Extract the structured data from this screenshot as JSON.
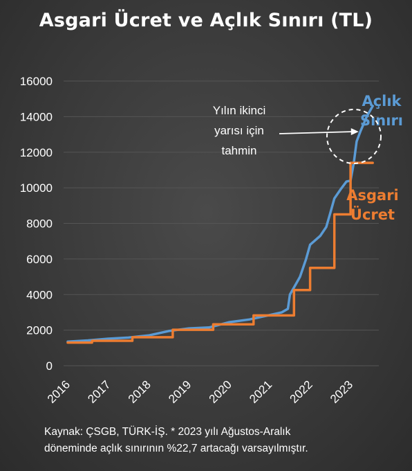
{
  "title": "Asgari Ücret ve Açlık Sınırı (TL)",
  "source_note": {
    "line1": "Kaynak: ÇSGB, TÜRK-İŞ. * 2023 yılı Ağustos-Aralık",
    "line2": "döneminde açlık sınırının %22,7 artacağı varsayılmıştır."
  },
  "colors": {
    "aclik": "#5b9bd5",
    "asgari": "#ed7d31",
    "background": "#3d3d3d",
    "grid": "#555555",
    "text": "#ffffff"
  },
  "chart_data": {
    "type": "line",
    "title": "Asgari Ücret ve Açlık Sınırı (TL)",
    "xlabel": "",
    "ylabel": "",
    "xlim": [
      2016.0,
      2023.7
    ],
    "ylim": [
      0,
      16000
    ],
    "yticks": [
      0,
      2000,
      4000,
      6000,
      8000,
      10000,
      12000,
      14000,
      16000
    ],
    "xticks": [
      "2016",
      "2017",
      "2018",
      "2019",
      "2020",
      "2021",
      "2022",
      "2023"
    ],
    "grid": true,
    "legend": "inline labels at right",
    "series": [
      {
        "name": "Açlık Sınırı",
        "name_lines": [
          "Açlık",
          "Sınırı"
        ],
        "x": [
          2016.0,
          2016.5,
          2017.0,
          2017.5,
          2018.0,
          2018.5,
          2019.0,
          2019.5,
          2019.75,
          2020.0,
          2020.5,
          2021.0,
          2021.3,
          2021.45,
          2021.5,
          2021.6,
          2021.75,
          2021.9,
          2022.0,
          2022.1,
          2022.25,
          2022.4,
          2022.5,
          2022.6,
          2022.75,
          2022.9,
          2023.0,
          2023.08,
          2023.15,
          2023.25,
          2023.4,
          2023.55
        ],
        "values": [
          1350,
          1420,
          1520,
          1580,
          1700,
          1950,
          2100,
          2150,
          2300,
          2450,
          2600,
          2850,
          3000,
          3200,
          4000,
          4400,
          5000,
          6000,
          6800,
          7000,
          7300,
          7800,
          8600,
          9400,
          9900,
          10350,
          10400,
          11400,
          12600,
          13200,
          14000,
          14600
        ]
      },
      {
        "name": "Asgari Ücret",
        "name_lines": [
          "Asgari",
          "Ücret"
        ],
        "x": [
          2016.0,
          2016.6,
          2016.6,
          2017.6,
          2017.6,
          2018.6,
          2018.6,
          2019.6,
          2019.6,
          2020.6,
          2020.6,
          2021.6,
          2021.6,
          2022.0,
          2022.0,
          2022.6,
          2022.6,
          2023.0,
          2023.0,
          2023.55
        ],
        "values": [
          1300,
          1300,
          1400,
          1400,
          1600,
          1600,
          2020,
          2020,
          2325,
          2325,
          2826,
          2826,
          4253,
          4253,
          5500,
          5500,
          8507,
          8507,
          11402,
          11402
        ]
      }
    ],
    "annotations": [
      {
        "text": "Yılın ikinci yarısı için tahmin",
        "lines": [
          "Yılın ikinci",
          "yarısı için",
          "tahmin"
        ],
        "arrow_to": [
          2023.2,
          13000
        ]
      }
    ]
  }
}
